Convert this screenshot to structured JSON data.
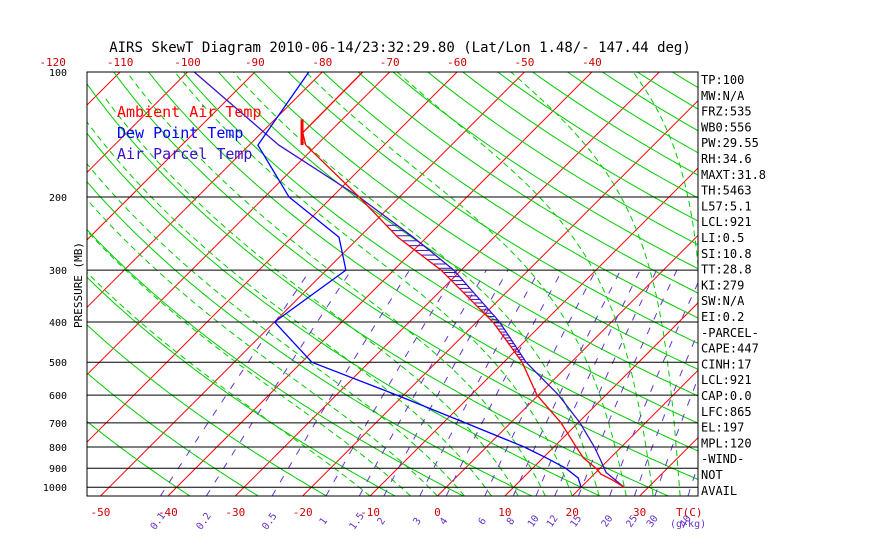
{
  "chart_data": {
    "type": "skewt",
    "title": "AIRS SkewT Diagram 2010-06-14/23:32:29.80 (Lat/Lon 1.48/- 147.44 deg)",
    "ylabel": "PRESSURE (MB)",
    "y_scale": "log",
    "ylim": [
      1050,
      100
    ],
    "pressure_ticks": [
      100,
      200,
      300,
      400,
      500,
      600,
      700,
      800,
      900,
      1000
    ],
    "bottom_temp_ticks": [
      -50,
      -40,
      -30,
      -20,
      -10,
      0,
      10,
      20,
      30
    ],
    "bottom_temp_label": "T(C)",
    "top_temp_ticks": [
      -120,
      -110,
      -100,
      -90,
      -80,
      -70,
      -60,
      -50,
      -40
    ],
    "mixing_ratio_ticks": [
      "0.1",
      "0.2",
      "0.5",
      "1",
      "1.5",
      "2",
      "3",
      "4",
      "6",
      "8",
      "10",
      "12",
      "15",
      "20",
      "25",
      "30",
      "40"
    ],
    "mixing_ratio_unit": "(g/kg)",
    "legend": [
      {
        "label": "Ambient Air Temp",
        "color": "#ff0000"
      },
      {
        "label": "Dew Point Temp",
        "color": "#0000ff"
      },
      {
        "label": "Air Parcel Temp",
        "color": "#3a10c8"
      }
    ],
    "series": [
      {
        "name": "Ambient Air Temp",
        "color": "#ff0000",
        "p": [
          1000,
          960,
          930,
          900,
          850,
          800,
          700,
          600,
          500,
          400,
          300,
          250,
          200,
          150,
          140,
          100
        ],
        "t": [
          26.4,
          23.5,
          21.0,
          19.4,
          16.0,
          13.3,
          7.5,
          -0.2,
          -7.3,
          -17.6,
          -33.0,
          -44.3,
          -56.0,
          -71.6,
          -73.9,
          -74.0
        ]
      },
      {
        "name": "Dew Point Temp",
        "color": "#0000ff",
        "p": [
          1000,
          950,
          900,
          850,
          800,
          700,
          600,
          500,
          400,
          300,
          250,
          200,
          150,
          100
        ],
        "t": [
          20.0,
          18.2,
          14.9,
          10.5,
          5.6,
          -6.7,
          -21.0,
          -38.5,
          -50.0,
          -47.1,
          -53.0,
          -66.4,
          -78.7,
          -82.0
        ]
      },
      {
        "name": "Air Parcel Temp",
        "color": "#3a10c8",
        "p": [
          1000,
          921,
          900,
          850,
          800,
          700,
          600,
          500,
          400,
          300,
          250,
          200,
          150,
          100
        ],
        "t": [
          26.4,
          21.5,
          20.6,
          18.4,
          16.0,
          10.3,
          3.0,
          -6.7,
          -16.6,
          -31.1,
          -42.0,
          -56.0,
          -75.6,
          -99.0
        ]
      }
    ],
    "stats": [
      "TP:100",
      "MW:N/A",
      "FRZ:535",
      "WB0:556",
      "PW:29.55",
      "RH:34.6",
      "MAXT:31.8",
      "TH:5463",
      "L57:5.1",
      "LCL:921",
      "LI:0.5",
      "SI:10.8",
      "TT:28.8",
      "KI:279",
      "SW:N/A",
      "EI:0.2",
      "-PARCEL-",
      "CAPE:447",
      "CINH:17",
      "LCL:921",
      "CAP:0.0",
      "LFC:865",
      "EL:197",
      "MPL:120",
      "-WIND-",
      "NOT",
      "AVAIL"
    ],
    "colors": {
      "isotherm": "#ff0000",
      "dry_adiabat": "#00cc00",
      "moist_adiabat": "#00cc00",
      "mixing_ratio": "#6633cc",
      "isobar": "#000000"
    }
  }
}
